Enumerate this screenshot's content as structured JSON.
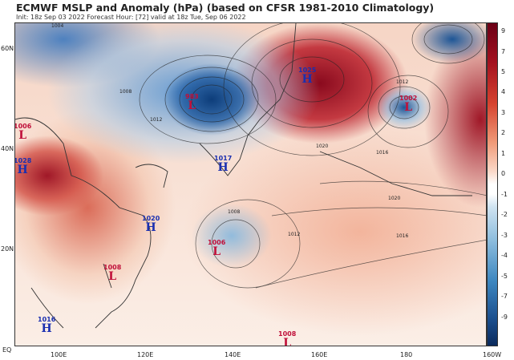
{
  "title": "ECMWF MSLP and Anomaly (hPa) (based on CFSR 1981-2010 Climatology)",
  "subtitle": "Init: 18z Sep 03 2022   Forecast Hour: [72]   valid at 18z Tue, Sep 06 2022",
  "lat_labels": [
    "60N",
    "40N",
    "20N",
    "EQ"
  ],
  "lon_labels": [
    "100E",
    "120E",
    "140E",
    "160E",
    "180",
    "160W"
  ],
  "colorbar_labels": [
    "9",
    "7",
    "5",
    "4",
    "3",
    "2",
    "1",
    "0",
    "-1",
    "-2",
    "-3",
    "-4",
    "-5",
    "-7",
    "-9"
  ],
  "centers": [
    {
      "type": "L",
      "value": "983"
    },
    {
      "type": "H",
      "value": "1025"
    },
    {
      "type": "L",
      "value": "1002"
    },
    {
      "type": "L",
      "value": "1006"
    },
    {
      "type": "H",
      "value": "1028"
    },
    {
      "type": "H",
      "value": "1017"
    },
    {
      "type": "H",
      "value": "1020"
    },
    {
      "type": "L",
      "value": "1006"
    },
    {
      "type": "L",
      "value": "1008"
    },
    {
      "type": "H",
      "value": "1016"
    },
    {
      "type": "L",
      "value": "1008"
    }
  ],
  "contour_labels": [
    "1004",
    "1008",
    "1012",
    "1016",
    "1020",
    "1008",
    "1012",
    "1016",
    "1012",
    "1020"
  ],
  "colors": {
    "low": "#c0103a",
    "high": "#1a2fb0"
  }
}
